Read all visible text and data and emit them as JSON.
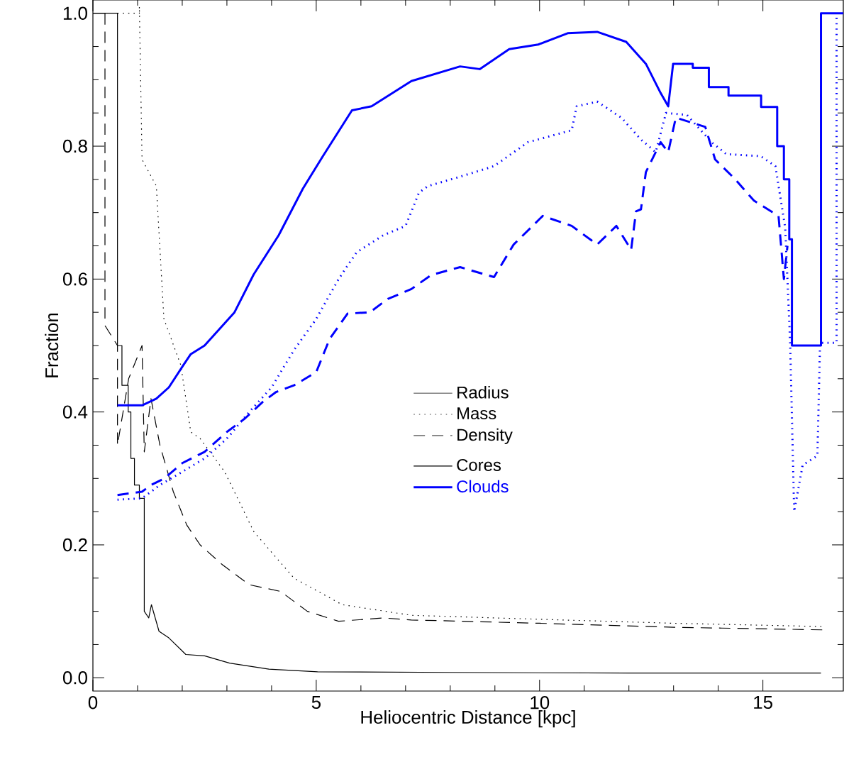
{
  "chart_data": {
    "type": "line",
    "xlabel": "Heliocentric Distance  [kpc]",
    "ylabel": "Fraction",
    "xlim": [
      0,
      16.8
    ],
    "ylim": [
      -0.02,
      1.02
    ],
    "xticks": [
      0,
      5,
      10,
      15
    ],
    "yticks": [
      {
        "value": 0,
        "label": "0.0"
      },
      {
        "value": 0.2,
        "label": "0.2"
      },
      {
        "value": 0.4,
        "label": "0.4"
      },
      {
        "value": 0.6,
        "label": "0.6"
      },
      {
        "value": 0.8,
        "label": "0.8"
      },
      {
        "value": 1.0,
        "label": "1.0"
      }
    ],
    "grid": false,
    "annotations": [
      "Radius",
      "Mass",
      "Density",
      "Cores",
      "Clouds"
    ],
    "series": [
      {
        "color": "#000000",
        "line_style": "solid",
        "x": [
          0,
          0.55,
          0.55,
          0.65,
          0.65,
          0.79,
          0.79,
          0.85,
          0.85,
          0.93,
          0.93,
          1.04,
          1.04,
          1.15,
          1.15,
          1.25,
          1.31,
          1.48,
          1.7,
          2.08,
          2.5,
          3.06,
          3.94,
          5.03,
          8,
          12,
          16.3
        ],
        "values": [
          1.0,
          1.0,
          0.5,
          0.5,
          0.44,
          0.44,
          0.4,
          0.4,
          0.33,
          0.33,
          0.29,
          0.29,
          0.27,
          0.27,
          0.1,
          0.09,
          0.11,
          0.07,
          0.06,
          0.035,
          0.033,
          0.022,
          0.013,
          0.009,
          0.008,
          0.007,
          0.007
        ]
      },
      {
        "color": "#000000",
        "line_style": "dotted",
        "x": [
          0.55,
          1.04,
          1.04,
          1.1,
          1.42,
          1.59,
          1.97,
          2.19,
          2.4,
          2.95,
          3.6,
          4.5,
          5.58,
          7.13,
          10,
          13,
          16.4
        ],
        "values": [
          1.0,
          1.0,
          1.01,
          0.78,
          0.74,
          0.54,
          0.47,
          0.37,
          0.36,
          0.31,
          0.22,
          0.15,
          0.11,
          0.094,
          0.088,
          0.082,
          0.077
        ]
      },
      {
        "color": "#000000",
        "line_style": "dashed",
        "x": [
          0.27,
          0.27,
          0.55,
          0.55,
          0.8,
          1.1,
          1.15,
          1.3,
          1.5,
          1.8,
          2.1,
          2.4,
          2.9,
          3.5,
          4.2,
          4.8,
          5.5,
          6.5,
          7.13,
          10,
          13,
          16.4
        ],
        "values": [
          1.0,
          0.53,
          0.5,
          0.35,
          0.45,
          0.5,
          0.34,
          0.42,
          0.35,
          0.28,
          0.23,
          0.2,
          0.17,
          0.14,
          0.13,
          0.1,
          0.085,
          0.09,
          0.087,
          0.082,
          0.076,
          0.072
        ]
      },
      {
        "color": "#0000ff",
        "line_style": "solid",
        "x": [
          0.55,
          1.1,
          1.42,
          1.7,
          2.02,
          2.19,
          2.5,
          3.17,
          3.6,
          4.16,
          4.7,
          5.14,
          5.8,
          6.24,
          7.13,
          8.22,
          8.66,
          9.32,
          9.97,
          10.63,
          11.29,
          11.94,
          12.38,
          12.71,
          12.88,
          12.99,
          13.43,
          13.43,
          13.79,
          13.79,
          14.23,
          14.23,
          14.96,
          14.96,
          15.32,
          15.32,
          15.47,
          15.47,
          15.59,
          15.59,
          15.65,
          15.65,
          16.3,
          16.3,
          16.8
        ],
        "values": [
          0.41,
          0.41,
          0.42,
          0.437,
          0.47,
          0.487,
          0.5,
          0.55,
          0.607,
          0.666,
          0.736,
          0.784,
          0.854,
          0.86,
          0.898,
          0.92,
          0.916,
          0.946,
          0.953,
          0.97,
          0.972,
          0.957,
          0.924,
          0.88,
          0.86,
          0.924,
          0.924,
          0.918,
          0.918,
          0.889,
          0.889,
          0.876,
          0.876,
          0.859,
          0.859,
          0.8,
          0.8,
          0.75,
          0.75,
          0.66,
          0.66,
          0.5,
          0.5,
          1.0,
          1.0
        ]
      },
      {
        "color": "#0000ff",
        "line_style": "dotted",
        "x": [
          0.55,
          1.1,
          1.5,
          2.0,
          2.5,
          3.0,
          3.5,
          4.0,
          4.5,
          5.0,
          5.5,
          5.9,
          6.5,
          7.0,
          7.3,
          7.5,
          8.22,
          8.98,
          9.74,
          10.72,
          10.83,
          11.29,
          11.83,
          12.27,
          12.6,
          12.83,
          13.3,
          13.85,
          14.18,
          14.95,
          15.28,
          15.5,
          15.61,
          15.7,
          15.89,
          16.22,
          16.28,
          16.65,
          16.65
        ],
        "values": [
          0.268,
          0.27,
          0.29,
          0.31,
          0.33,
          0.36,
          0.4,
          0.437,
          0.493,
          0.54,
          0.6,
          0.64,
          0.666,
          0.68,
          0.73,
          0.74,
          0.754,
          0.77,
          0.806,
          0.824,
          0.86,
          0.867,
          0.843,
          0.81,
          0.791,
          0.85,
          0.847,
          0.806,
          0.788,
          0.785,
          0.77,
          0.677,
          0.504,
          0.25,
          0.32,
          0.334,
          0.504,
          0.504,
          1.0
        ]
      },
      {
        "color": "#0000ff",
        "line_style": "dashed",
        "x": [
          0.55,
          1.1,
          1.3,
          1.6,
          2.0,
          2.5,
          3.0,
          3.4,
          3.8,
          4.1,
          4.5,
          5.0,
          5.3,
          5.7,
          6.2,
          6.6,
          7.13,
          7.57,
          8.22,
          8.98,
          9.42,
          10.07,
          10.72,
          11.29,
          11.72,
          12.05,
          12.16,
          12.27,
          12.38,
          12.71,
          12.88,
          13.05,
          13.71,
          13.93,
          14.37,
          14.8,
          15.35,
          15.47,
          15.55
        ],
        "values": [
          0.275,
          0.28,
          0.29,
          0.3,
          0.323,
          0.34,
          0.37,
          0.39,
          0.415,
          0.43,
          0.44,
          0.46,
          0.51,
          0.548,
          0.55,
          0.57,
          0.585,
          0.606,
          0.618,
          0.603,
          0.652,
          0.695,
          0.68,
          0.652,
          0.68,
          0.644,
          0.702,
          0.705,
          0.761,
          0.806,
          0.791,
          0.843,
          0.829,
          0.78,
          0.751,
          0.718,
          0.695,
          0.6,
          0.65
        ]
      }
    ]
  }
}
